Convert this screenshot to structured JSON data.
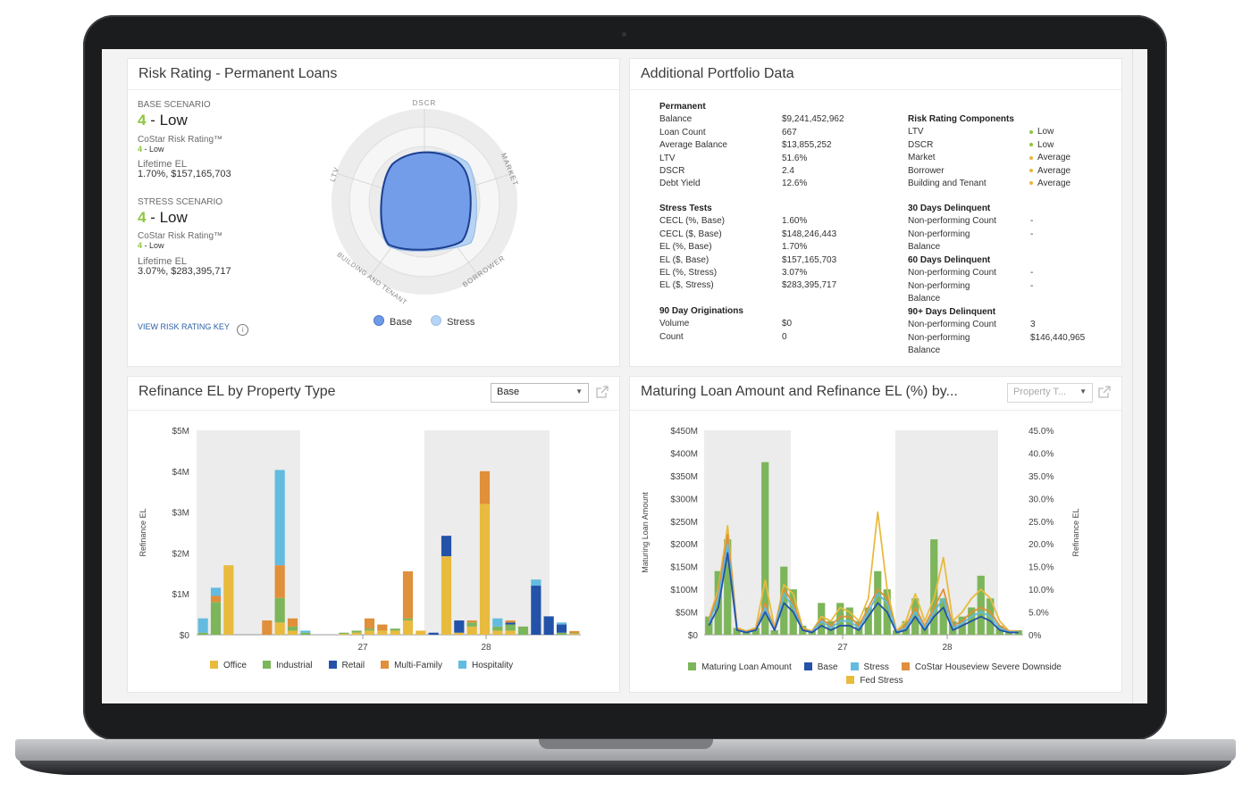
{
  "risk_panel": {
    "title": "Risk Rating - Permanent Loans",
    "base": {
      "label": "BASE SCENARIO",
      "score": "4",
      "score_text": " - Low",
      "costar_label": "CoStar Risk Rating™",
      "costar_score": "4",
      "costar_text": " - Low",
      "el_label": "Lifetime EL",
      "el_value": "1.70%, $157,165,703"
    },
    "stress": {
      "label": "STRESS SCENARIO",
      "score": "4",
      "score_text": " - Low",
      "costar_label": "CoStar Risk Rating™",
      "costar_score": "4",
      "costar_text": " - Low",
      "el_label": "Lifetime EL",
      "el_value": "3.07%, $283,395,717"
    },
    "key_link": "VIEW RISK RATING KEY",
    "radar_axes": [
      "DSCR",
      "MARKET",
      "BORROWER",
      "BUILDING AND TENANT",
      "LTV"
    ],
    "legend": [
      {
        "name": "Base",
        "color": "#6f9ae8"
      },
      {
        "name": "Stress",
        "color": "#b7d3f3"
      }
    ]
  },
  "portfolio_panel": {
    "title": "Additional Portfolio Data",
    "permanent": {
      "heading": "Permanent",
      "rows": [
        {
          "label": "Balance",
          "value": "$9,241,452,962"
        },
        {
          "label": "Loan Count",
          "value": "667"
        },
        {
          "label": "Average Balance",
          "value": "$13,855,252"
        },
        {
          "label": "LTV",
          "value": "51.6%"
        },
        {
          "label": "DSCR",
          "value": "2.4"
        },
        {
          "label": "Debt Yield",
          "value": "12.6%"
        }
      ]
    },
    "stress_tests": {
      "heading": "Stress Tests",
      "rows": [
        {
          "label": "CECL (%, Base)",
          "value": "1.60%"
        },
        {
          "label": "CECL ($, Base)",
          "value": "$148,246,443"
        },
        {
          "label": "EL (%, Base)",
          "value": "1.70%"
        },
        {
          "label": "EL ($, Base)",
          "value": "$157,165,703"
        },
        {
          "label": "EL (%, Stress)",
          "value": "3.07%"
        },
        {
          "label": "EL ($, Stress)",
          "value": "$283,395,717"
        }
      ]
    },
    "originations": {
      "heading": "90 Day Originations",
      "rows": [
        {
          "label": "Volume",
          "value": "$0"
        },
        {
          "label": "Count",
          "value": "0"
        }
      ]
    },
    "components": {
      "heading": "Risk Rating Components",
      "rows": [
        {
          "label": "LTV",
          "value": "Low",
          "color": "#8dc63f"
        },
        {
          "label": "DSCR",
          "value": "Low",
          "color": "#8dc63f"
        },
        {
          "label": "Market",
          "value": "Average",
          "color": "#e8b83a"
        },
        {
          "label": "Borrower",
          "value": "Average",
          "color": "#e8b83a"
        },
        {
          "label": "Building and Tenant",
          "value": "Average",
          "color": "#e8b83a"
        }
      ]
    },
    "delinquent30": {
      "heading": "30 Days Delinquent",
      "count_label": "Non-performing Count",
      "count_value": "-",
      "bal_label1": "Non-performing",
      "bal_label2": "Balance",
      "bal_value": "-"
    },
    "delinquent60": {
      "heading": "60 Days Delinquent",
      "count_label": "Non-performing Count",
      "count_value": "-",
      "bal_label1": "Non-performing",
      "bal_label2": "Balance",
      "bal_value": "-"
    },
    "delinquent90": {
      "heading": "90+ Days Delinquent",
      "count_label": "Non-performing Count",
      "count_value": "3",
      "bal_label1": "Non-performing",
      "bal_label2": "Balance",
      "bal_value": "$146,440,965"
    }
  },
  "refi_panel": {
    "title": "Refinance EL by Property Type",
    "dropdown_value": "Base"
  },
  "maturing_panel": {
    "title": "Maturing Loan Amount and Refinance EL (%) by...",
    "dropdown_placeholder": "Property T..."
  },
  "chart_data": [
    {
      "type": "bar",
      "title": "Refinance EL by Property Type",
      "stacked": true,
      "ylabel": "Refinance EL",
      "xlabel": "",
      "ylim": [
        0,
        5000000
      ],
      "y_ticks": [
        "$0",
        "$1M",
        "$2M",
        "$3M",
        "$4M",
        "$5M"
      ],
      "x_ticks": [
        "27",
        "28"
      ],
      "legend_position": "bottom",
      "series": [
        {
          "name": "Office",
          "color": "#e8bb3f",
          "values": [
            0,
            0,
            1.7,
            0,
            0,
            0,
            0.3,
            0.1,
            0,
            0,
            0,
            0.02,
            0.05,
            0.1,
            0.1,
            0.1,
            0.35,
            0.1,
            0,
            1.92,
            0.05,
            0.2,
            3.2,
            0.1,
            0.1,
            0,
            0,
            0,
            0,
            0.02
          ]
        },
        {
          "name": "Industrial",
          "color": "#7db55a",
          "values": [
            0.05,
            0.8,
            0,
            0,
            0,
            0,
            0.6,
            0.1,
            0.05,
            0,
            0,
            0.03,
            0.05,
            0.05,
            0,
            0.05,
            0.05,
            0,
            0,
            0,
            0,
            0.1,
            0,
            0.1,
            0.15,
            0.2,
            0,
            0,
            0.05,
            0.02
          ]
        },
        {
          "name": "Retail",
          "color": "#2352a8",
          "values": [
            0,
            0,
            0,
            0,
            0,
            0,
            0,
            0,
            0,
            0,
            0,
            0,
            0,
            0,
            0,
            0,
            0,
            0,
            0.05,
            0.5,
            0.3,
            0,
            0,
            0,
            0.05,
            0,
            1.2,
            0.45,
            0.2,
            0
          ]
        },
        {
          "name": "Multi-Family",
          "color": "#e08f3a",
          "values": [
            0,
            0.15,
            0,
            0,
            0,
            0.35,
            0.8,
            0.2,
            0,
            0,
            0,
            0,
            0,
            0.25,
            0.15,
            0,
            1.15,
            0,
            0,
            0,
            0,
            0.05,
            0.8,
            0,
            0.05,
            0,
            0,
            0,
            0,
            0.05
          ]
        },
        {
          "name": "Hospitality",
          "color": "#63bbe0",
          "values": [
            0.35,
            0.2,
            0,
            0,
            0,
            0,
            2.33,
            0,
            0.05,
            0,
            0,
            0,
            0,
            0,
            0,
            0,
            0,
            0,
            0,
            0,
            0,
            0,
            0,
            0.2,
            0,
            0,
            0.15,
            0,
            0.05,
            0
          ]
        }
      ],
      "units": "$M"
    },
    {
      "type": "bar",
      "title": "Maturing Loan Amount and Refinance EL (%) by...",
      "ylabel": "Maturing Loan Amount",
      "y2label": "Refinance EL",
      "ylim": [
        0,
        450
      ],
      "y2lim": [
        0,
        45
      ],
      "y_ticks": [
        "$0",
        "$50M",
        "$100M",
        "$150M",
        "$200M",
        "$250M",
        "$300M",
        "$350M",
        "$400M",
        "$450M"
      ],
      "y2_ticks": [
        "0%",
        "5.0%",
        "10.0%",
        "15.0%",
        "20.0%",
        "25.0%",
        "30.0%",
        "35.0%",
        "40.0%",
        "45.0%"
      ],
      "x_ticks": [
        "27",
        "28"
      ],
      "legend_position": "bottom",
      "bars": {
        "name": "Maturing Loan Amount",
        "color": "#7db55a",
        "units": "$M",
        "values": [
          40,
          140,
          210,
          15,
          10,
          15,
          380,
          10,
          150,
          100,
          20,
          10,
          70,
          30,
          70,
          60,
          30,
          60,
          140,
          100,
          10,
          30,
          80,
          20,
          210,
          80,
          30,
          40,
          60,
          130,
          80,
          20,
          10,
          10
        ]
      },
      "lines": [
        {
          "name": "Base",
          "color": "#2352a8",
          "values": [
            2,
            6,
            18,
            1,
            0.5,
            1,
            5,
            1,
            7,
            5,
            1,
            0.5,
            2,
            1,
            2,
            2,
            1,
            4,
            7,
            5,
            0.5,
            1,
            4,
            1,
            4,
            6,
            1,
            2,
            3,
            4,
            3,
            1,
            0.5,
            0.5
          ]
        },
        {
          "name": "Stress",
          "color": "#63bbe0",
          "values": [
            2.5,
            8,
            20,
            1,
            0.6,
            1,
            6,
            1,
            9,
            6,
            1,
            0.6,
            3,
            1.5,
            3,
            3,
            1.5,
            5,
            9,
            7,
            0.6,
            1.5,
            5,
            1.5,
            5,
            8,
            1.5,
            2.5,
            4,
            5,
            4,
            1.5,
            0.6,
            0.6
          ]
        },
        {
          "name": "CoStar Houseview Severe Downside",
          "color": "#e08f3a",
          "values": [
            3,
            9,
            22,
            1.2,
            0.7,
            1.2,
            7,
            1.2,
            10,
            7,
            1.2,
            0.7,
            3.5,
            2,
            4,
            4,
            2,
            6,
            10,
            8,
            0.7,
            2,
            6,
            2,
            6,
            10,
            2,
            3,
            5,
            6,
            5,
            2,
            0.7,
            0.7
          ]
        },
        {
          "name": "Fed Stress",
          "color": "#e8bb3f",
          "values": [
            3.5,
            10,
            24,
            1.5,
            0.8,
            1.5,
            12,
            1.5,
            11,
            9,
            1.5,
            0.8,
            4,
            3,
            6,
            5,
            3,
            8,
            27,
            10,
            0.8,
            3,
            9,
            3,
            8,
            17,
            3,
            5,
            8,
            10,
            8,
            3,
            0.8,
            0.8
          ]
        }
      ],
      "units_line": "%"
    }
  ],
  "chart_legends": {
    "refi": [
      "Office",
      "Industrial",
      "Retail",
      "Multi-Family",
      "Hospitality"
    ],
    "maturing": [
      "Maturing Loan Amount",
      "Base",
      "Stress",
      "CoStar Houseview Severe Downside",
      "Fed Stress"
    ]
  }
}
